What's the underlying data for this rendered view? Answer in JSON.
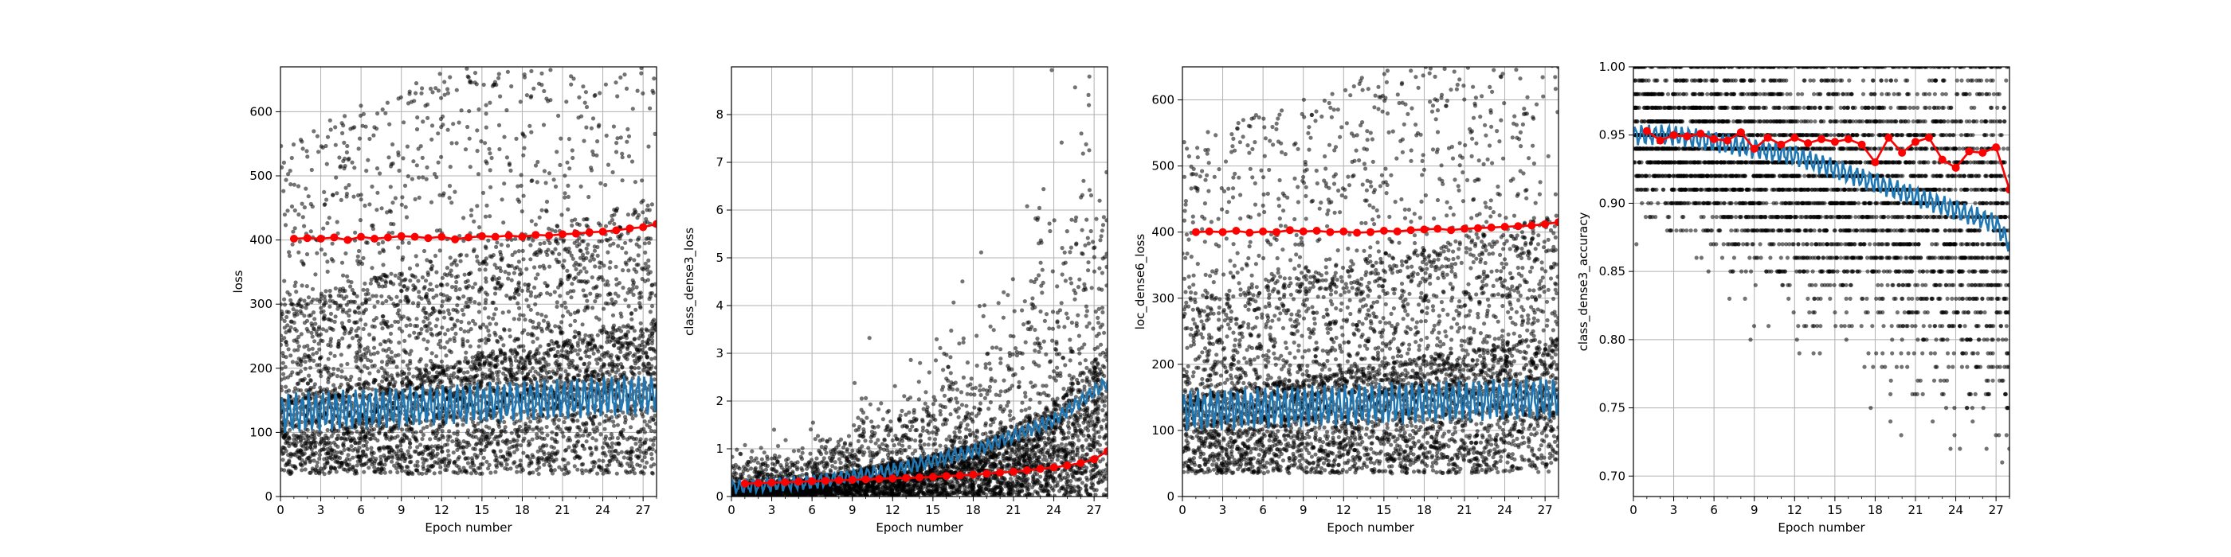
{
  "chart_data": [
    {
      "type": "scatter",
      "title": "",
      "xlabel": "Epoch number",
      "ylabel": "loss",
      "xlim": [
        0,
        28
      ],
      "ylim": [
        0,
        670
      ],
      "xticks": [
        0,
        3,
        6,
        9,
        12,
        15,
        18,
        21,
        24,
        27
      ],
      "yticks": [
        0,
        100,
        200,
        300,
        400,
        500,
        600
      ],
      "grid": true,
      "series": [
        {
          "kind": "scatter",
          "color": "#000000",
          "description": "per-batch values",
          "bands": [
            [
              35,
              150,
              0.55
            ],
            [
              150,
              300,
              0.3
            ],
            [
              300,
              550,
              0.15
            ]
          ],
          "points_per_epoch": 170,
          "spread_growth": 0.004,
          "seed": 11
        },
        {
          "kind": "line",
          "color": "#1f77b4",
          "description": "running mean",
          "start": 130,
          "end": 160,
          "amplitude": 25,
          "period_epochs": 0.5
        },
        {
          "kind": "line-markers",
          "color": "#ff0000",
          "description": "epoch mean",
          "x": [
            1,
            2,
            3,
            4,
            5,
            6,
            7,
            8,
            9,
            10,
            11,
            12,
            13,
            14,
            15,
            16,
            17,
            18,
            19,
            20,
            21,
            22,
            23,
            24,
            25,
            26,
            27,
            28
          ],
          "y": [
            402,
            403,
            402,
            404,
            400,
            405,
            402,
            404,
            406,
            405,
            403,
            405,
            401,
            404,
            406,
            405,
            407,
            405,
            408,
            407,
            409,
            410,
            412,
            413,
            415,
            418,
            420,
            425
          ]
        }
      ]
    },
    {
      "type": "scatter",
      "title": "",
      "xlabel": "Epoch number",
      "ylabel": "class_dense3_loss",
      "xlim": [
        0,
        28
      ],
      "ylim": [
        0,
        9
      ],
      "xticks": [
        0,
        3,
        6,
        9,
        12,
        15,
        18,
        21,
        24,
        27
      ],
      "yticks": [
        0,
        1,
        2,
        3,
        4,
        5,
        6,
        7,
        8
      ],
      "grid": true,
      "series": [
        {
          "kind": "scatter",
          "color": "#000000",
          "description": "per-batch values",
          "growth": [
            [
              0,
              0.3
            ],
            [
              6,
              0.4
            ],
            [
              12,
              0.8
            ],
            [
              18,
              1.2
            ],
            [
              24,
              2.2
            ],
            [
              28,
              3.5
            ]
          ],
          "points_per_epoch": 170,
          "seed": 23
        },
        {
          "kind": "line",
          "color": "#1f77b4",
          "description": "running mean",
          "curve": [
            [
              0,
              0.2
            ],
            [
              6,
              0.3
            ],
            [
              12,
              0.55
            ],
            [
              18,
              0.95
            ],
            [
              24,
              1.6
            ],
            [
              28,
              2.4
            ]
          ],
          "amplitude": 0.12,
          "period_epochs": 0.5
        },
        {
          "kind": "line-markers",
          "color": "#ff0000",
          "description": "epoch mean",
          "x": [
            1,
            2,
            3,
            4,
            5,
            6,
            7,
            8,
            9,
            10,
            11,
            12,
            13,
            14,
            15,
            16,
            17,
            18,
            19,
            20,
            21,
            22,
            23,
            24,
            25,
            26,
            27,
            28
          ],
          "y": [
            0.27,
            0.28,
            0.29,
            0.3,
            0.31,
            0.32,
            0.33,
            0.34,
            0.35,
            0.36,
            0.37,
            0.38,
            0.39,
            0.4,
            0.41,
            0.43,
            0.44,
            0.46,
            0.48,
            0.5,
            0.52,
            0.55,
            0.58,
            0.61,
            0.65,
            0.7,
            0.78,
            0.95
          ]
        }
      ]
    },
    {
      "type": "scatter",
      "title": "",
      "xlabel": "Epoch number",
      "ylabel": "loc_dense6_loss",
      "xlim": [
        0,
        28
      ],
      "ylim": [
        0,
        650
      ],
      "xticks": [
        0,
        3,
        6,
        9,
        12,
        15,
        18,
        21,
        24,
        27
      ],
      "yticks": [
        0,
        100,
        200,
        300,
        400,
        500,
        600
      ],
      "grid": true,
      "series": [
        {
          "kind": "scatter",
          "color": "#000000",
          "description": "per-batch values",
          "bands": [
            [
              35,
              150,
              0.55
            ],
            [
              150,
              300,
              0.3
            ],
            [
              300,
              540,
              0.15
            ]
          ],
          "points_per_epoch": 170,
          "spread_growth": 0.003,
          "seed": 37
        },
        {
          "kind": "line",
          "color": "#1f77b4",
          "description": "running mean",
          "start": 130,
          "end": 150,
          "amplitude": 25,
          "period_epochs": 0.5
        },
        {
          "kind": "line-markers",
          "color": "#ff0000",
          "description": "epoch mean",
          "x": [
            1,
            2,
            3,
            4,
            5,
            6,
            7,
            8,
            9,
            10,
            11,
            12,
            13,
            14,
            15,
            16,
            17,
            18,
            19,
            20,
            21,
            22,
            23,
            24,
            25,
            26,
            27,
            28
          ],
          "y": [
            400,
            401,
            400,
            402,
            399,
            401,
            400,
            403,
            401,
            402,
            400,
            401,
            399,
            400,
            402,
            401,
            403,
            404,
            405,
            403,
            405,
            406,
            407,
            408,
            409,
            410,
            412,
            415
          ]
        }
      ]
    },
    {
      "type": "scatter",
      "title": "",
      "xlabel": "Epoch number",
      "ylabel": "class_dense3_accuracy",
      "xlim": [
        0,
        28
      ],
      "ylim": [
        0.685,
        1.0
      ],
      "xticks": [
        0,
        3,
        6,
        9,
        12,
        15,
        18,
        21,
        24,
        27
      ],
      "yticks": [
        0.7,
        0.75,
        0.8,
        0.85,
        0.9,
        0.95,
        1.0
      ],
      "grid": true,
      "series": [
        {
          "kind": "scatter",
          "color": "#000000",
          "description": "per-batch values (quantized)",
          "levels": [
            0.7,
            0.71,
            0.72,
            0.73,
            0.74,
            0.75,
            0.76,
            0.77,
            0.78,
            0.79,
            0.8,
            0.81,
            0.82,
            0.83,
            0.84,
            0.85,
            0.86,
            0.87,
            0.88,
            0.89,
            0.9,
            0.91,
            0.92,
            0.93,
            0.94,
            0.95,
            0.96,
            0.97,
            0.98,
            0.99,
            1.0
          ],
          "center_start": 0.955,
          "center_end": 0.88,
          "spread_start": 0.025,
          "spread_end": 0.07,
          "points_per_epoch": 150,
          "seed": 51
        },
        {
          "kind": "line",
          "color": "#1f77b4",
          "description": "running mean",
          "curve": [
            [
              0,
              0.95
            ],
            [
              3,
              0.95
            ],
            [
              6,
              0.945
            ],
            [
              9,
              0.94
            ],
            [
              12,
              0.935
            ],
            [
              15,
              0.925
            ],
            [
              18,
              0.915
            ],
            [
              21,
              0.905
            ],
            [
              24,
              0.895
            ],
            [
              27,
              0.885
            ],
            [
              28,
              0.87
            ]
          ],
          "amplitude": 0.006,
          "period_epochs": 0.5
        },
        {
          "kind": "line-markers",
          "color": "#ff0000",
          "description": "epoch mean",
          "x": [
            1,
            2,
            3,
            4,
            5,
            6,
            7,
            8,
            9,
            10,
            11,
            12,
            13,
            14,
            15,
            16,
            17,
            18,
            19,
            20,
            21,
            22,
            23,
            24,
            25,
            26,
            27,
            28
          ],
          "y": [
            0.953,
            0.946,
            0.95,
            0.949,
            0.951,
            0.947,
            0.946,
            0.952,
            0.94,
            0.948,
            0.943,
            0.948,
            0.944,
            0.947,
            0.945,
            0.947,
            0.943,
            0.93,
            0.948,
            0.937,
            0.945,
            0.948,
            0.932,
            0.926,
            0.938,
            0.937,
            0.941,
            0.91
          ]
        }
      ]
    }
  ]
}
